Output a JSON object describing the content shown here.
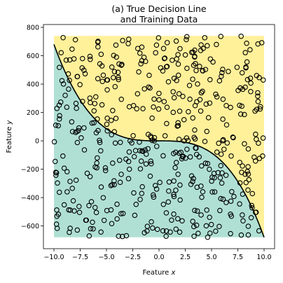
{
  "chart_data": {
    "type": "scatter",
    "title": [
      "(a) True Decision Line",
      "and Training Data"
    ],
    "xlabel_prefix": "Feature ",
    "xlabel_var": "x",
    "ylabel_prefix": "Feature ",
    "ylabel_var": "y",
    "xlim": [
      -11.0,
      11.0
    ],
    "ylim": [
      -760,
      820
    ],
    "xticks": [
      -10.0,
      -7.5,
      -5.0,
      -2.5,
      0.0,
      2.5,
      5.0,
      7.5,
      10.0
    ],
    "xtick_labels": [
      "−10.0",
      "−7.5",
      "−5.0",
      "−2.5",
      "0.0",
      "2.5",
      "5.0",
      "7.5",
      "10.0"
    ],
    "yticks": [
      -600,
      -400,
      -200,
      0,
      200,
      400,
      600,
      800
    ],
    "ytick_labels": [
      "−600",
      "−400",
      "−200",
      "0",
      "200",
      "400",
      "600",
      "800"
    ],
    "region_xrange": [
      -10,
      10
    ],
    "region_yrange": [
      -680,
      740
    ],
    "decision_line": {
      "formula": "y = -0.68 * x^3",
      "color": "#000000"
    },
    "region_colors": {
      "below": "#b0e0d4",
      "above": "#fff09a"
    },
    "training_points": {
      "count": 500,
      "x_range": [
        -10,
        10
      ],
      "y_range": [
        -680,
        740
      ],
      "marker": "open-circle"
    }
  }
}
